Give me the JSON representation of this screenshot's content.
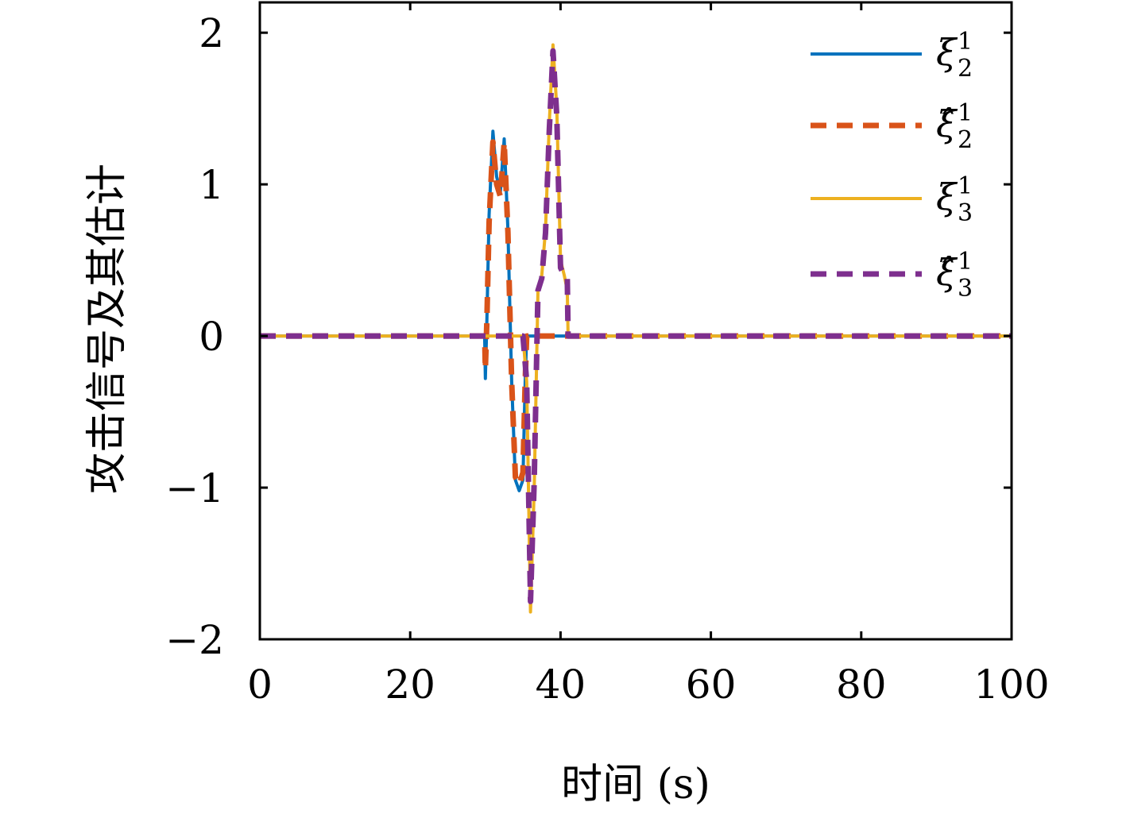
{
  "chart_data": {
    "type": "line",
    "xlabel": "时间 (s)",
    "ylabel": "攻击信号及其估计",
    "xlim": [
      0,
      100
    ],
    "ylim": [
      -2,
      2.2
    ],
    "xticks": [
      "0",
      "20",
      "40",
      "60",
      "80",
      "100"
    ],
    "yticks": [
      "−2",
      "−1",
      "0",
      "1",
      "2"
    ],
    "grid": false,
    "legend_position": "top-right",
    "series": [
      {
        "name": "ξ",
        "legend": {
          "base": "ξ",
          "sup": "1",
          "sub": "2",
          "hat": false
        },
        "color": "#0072BD",
        "dash": "solid",
        "x": [
          0,
          29.9,
          30.0,
          30.2,
          30.5,
          31.0,
          31.5,
          32.0,
          32.5,
          33.0,
          33.5,
          34.0,
          34.5,
          35.0,
          35.3,
          35.5,
          36.0,
          100
        ],
        "y": [
          0,
          0,
          -0.28,
          0.1,
          0.8,
          1.35,
          1.05,
          0.95,
          1.3,
          0.7,
          -0.3,
          -0.95,
          -1.02,
          -0.95,
          -0.3,
          0,
          0,
          0
        ]
      },
      {
        "name": "ξ̂",
        "legend": {
          "base": "ξ̂",
          "sup": "1",
          "sub": "2",
          "hat": true
        },
        "color": "#D95319",
        "dash": "dashed",
        "x": [
          0,
          29.9,
          30.0,
          30.2,
          30.5,
          31.0,
          31.5,
          32.0,
          32.5,
          33.0,
          33.5,
          34.0,
          34.5,
          35.0,
          35.3,
          35.5,
          36.0,
          100
        ],
        "y": [
          0,
          0,
          -0.22,
          0.1,
          0.75,
          1.28,
          1.0,
          0.92,
          1.28,
          0.68,
          -0.3,
          -0.93,
          -0.98,
          -0.9,
          -0.3,
          0,
          0,
          0
        ]
      },
      {
        "name": "ξ",
        "legend": {
          "base": "ξ",
          "sup": "1",
          "sub": "3",
          "hat": false
        },
        "color": "#EDB120",
        "dash": "solid",
        "x": [
          0,
          35.0,
          35.5,
          36.0,
          36.5,
          37.0,
          37.5,
          38.0,
          38.5,
          39.0,
          39.5,
          40.0,
          40.5,
          40.9,
          41.0,
          41.5,
          100
        ],
        "y": [
          0,
          0,
          -0.3,
          -1.82,
          -1.0,
          0.3,
          0.4,
          0.7,
          1.4,
          1.92,
          1.5,
          0.5,
          0.4,
          0.3,
          0,
          0,
          0
        ]
      },
      {
        "name": "ξ̂",
        "legend": {
          "base": "ξ̂",
          "sup": "1",
          "sub": "3",
          "hat": true
        },
        "color": "#7E2F8E",
        "dash": "dashed",
        "x": [
          0,
          35.0,
          35.5,
          36.0,
          36.5,
          37.0,
          37.5,
          38.0,
          38.5,
          39.0,
          39.5,
          40.0,
          40.5,
          40.9,
          41.0,
          41.5,
          100
        ],
        "y": [
          0,
          0,
          -0.3,
          -1.75,
          -0.95,
          0.3,
          0.38,
          0.68,
          1.35,
          1.88,
          1.45,
          0.45,
          0.4,
          0.38,
          0,
          0,
          0
        ]
      }
    ]
  }
}
